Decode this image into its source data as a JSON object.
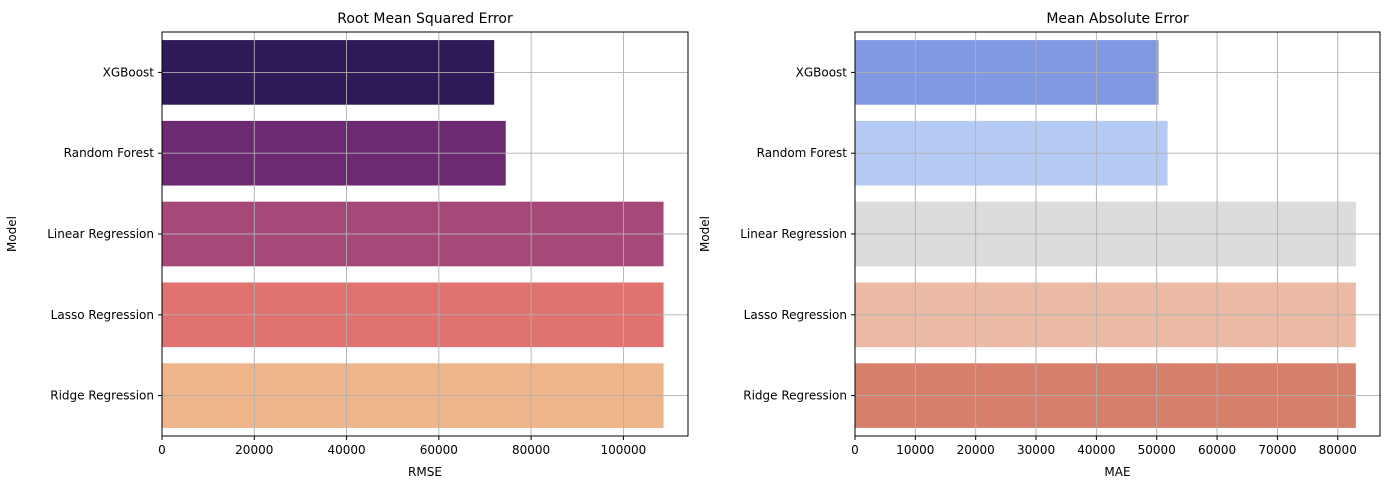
{
  "chart_data": [
    {
      "type": "bar",
      "orientation": "horizontal",
      "title": "Root Mean Squared Error",
      "xlabel": "RMSE",
      "ylabel": "Model",
      "categories": [
        "XGBoost",
        "Random Forest",
        "Linear Regression",
        "Lasso Regression",
        "Ridge Regression"
      ],
      "values": [
        72000,
        74500,
        108700,
        108700,
        108700
      ],
      "colors": [
        "#2e1a57",
        "#6b2a72",
        "#a64878",
        "#e07370",
        "#eeb48a"
      ],
      "xlim": [
        0,
        114000
      ],
      "xticks": [
        0,
        20000,
        40000,
        60000,
        80000,
        100000
      ],
      "grid": true
    },
    {
      "type": "bar",
      "orientation": "horizontal",
      "title": "Mean Absolute Error",
      "xlabel": "MAE",
      "ylabel": "Model",
      "categories": [
        "XGBoost",
        "Random Forest",
        "Linear Regression",
        "Lasso Regression",
        "Ridge Regression"
      ],
      "values": [
        50300,
        51800,
        83000,
        83000,
        83000
      ],
      "colors": [
        "#8199e3",
        "#b6cbf3",
        "#dcdcdc",
        "#ebbba6",
        "#d6806b"
      ],
      "xlim": [
        0,
        87000
      ],
      "xticks": [
        0,
        10000,
        20000,
        30000,
        40000,
        50000,
        60000,
        70000,
        80000
      ],
      "grid": true
    }
  ]
}
